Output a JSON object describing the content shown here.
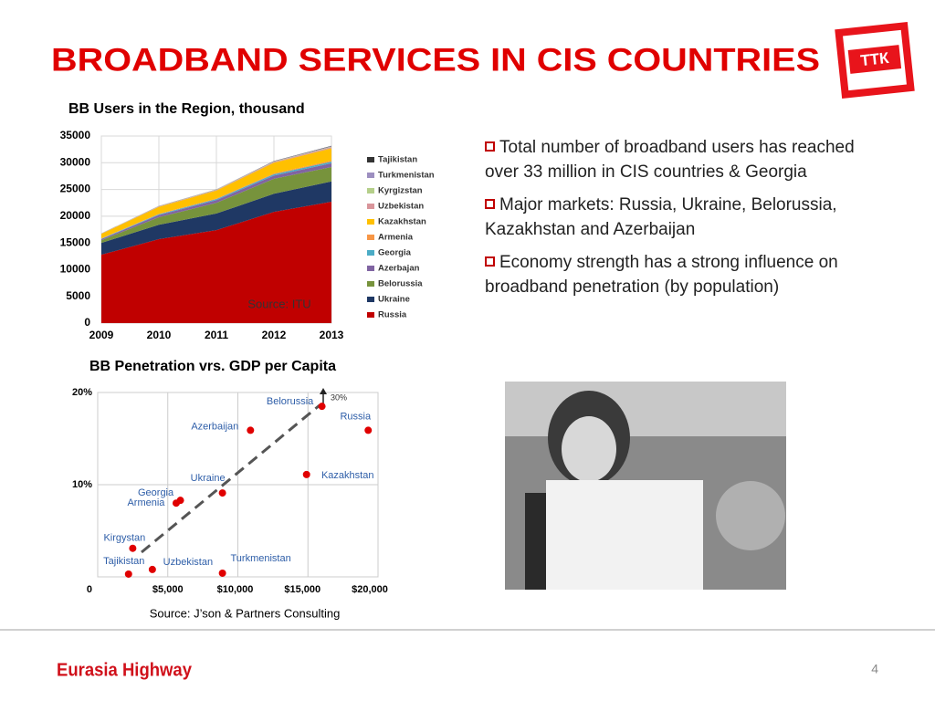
{
  "title": "BROADBAND SERVICES IN CIS COUNTRIES",
  "logo": "ТТК",
  "bullets": [
    "Total number of broadband users has reached over 33 million in CIS countries & Georgia",
    "Major markets: Russia, Ukraine, Belorussia, Kazakhstan and Azerbaijan",
    "Economy strength has a strong influence on broadband penetration (by population)"
  ],
  "footer": "Eurasia Highway",
  "page_number": "4",
  "chart_data": [
    {
      "type": "area",
      "title": "BB Users in the Region, thousand",
      "annotation": "Source: ITU",
      "x": [
        2009,
        2010,
        2011,
        2012,
        2013
      ],
      "xlim": [
        2009,
        2013
      ],
      "xticks": [
        2009,
        2010,
        2011,
        2012,
        2013
      ],
      "ylim": [
        0,
        35000
      ],
      "yticks": [
        0,
        5000,
        10000,
        15000,
        20000,
        25000,
        30000,
        35000
      ],
      "grid": true,
      "series": [
        {
          "name": "Russia",
          "color": "#c00000",
          "values": [
            12800,
            15700,
            17400,
            20800,
            22700
          ]
        },
        {
          "name": "Ukraine",
          "color": "#1f3864",
          "values": [
            2200,
            2700,
            3100,
            3400,
            3800
          ]
        },
        {
          "name": "Belorussia",
          "color": "#77933c",
          "values": [
            500,
            1400,
            2000,
            2800,
            2700
          ]
        },
        {
          "name": "Azerbajan",
          "color": "#8064a2",
          "values": [
            200,
            400,
            500,
            600,
            700
          ]
        },
        {
          "name": "Georgia",
          "color": "#4bacc6",
          "values": [
            100,
            150,
            200,
            250,
            300
          ]
        },
        {
          "name": "Armenia",
          "color": "#f79646",
          "values": [
            50,
            100,
            100,
            150,
            200
          ]
        },
        {
          "name": "Kazakhstan",
          "color": "#ffc000",
          "values": [
            850,
            1300,
            1500,
            2000,
            2300
          ]
        },
        {
          "name": "Uzbekistan",
          "color": "#d9959b",
          "values": [
            50,
            80,
            100,
            150,
            200
          ]
        },
        {
          "name": "Kyrgizstan",
          "color": "#b5cf8a",
          "values": [
            30,
            50,
            60,
            80,
            100
          ]
        },
        {
          "name": "Turkmenistan",
          "color": "#9d8fc0",
          "values": [
            10,
            20,
            30,
            50,
            100
          ]
        },
        {
          "name": "Tajikistan",
          "color": "#333333",
          "values": [
            10,
            20,
            30,
            40,
            60
          ]
        }
      ]
    },
    {
      "type": "scatter",
      "title": "BB Penetration vrs. GDP per Capita",
      "annotation": "30%",
      "source": "Source: J’son & Partners Consulting",
      "labels": [
        "Belorussia",
        "Russia",
        "Azerbaijan",
        "Kazakhstan",
        "Ukraine",
        "Georgia",
        "Armenia",
        "Kirgystan",
        "Tajikistan",
        "Uzbekistan",
        "Turkmenistan"
      ],
      "x": [
        16000,
        19300,
        10900,
        14900,
        8900,
        5900,
        5600,
        2500,
        2200,
        3900,
        8900
      ],
      "values": [
        18.5,
        15.9,
        15.9,
        11.1,
        9.1,
        8.3,
        8.0,
        3.1,
        0.3,
        0.8,
        0.4
      ],
      "color": "#e00000",
      "label_color": "#2e5ea8",
      "xlim": [
        0,
        20000
      ],
      "xticks": [
        {
          "value": 5000,
          "label": "$5,000"
        },
        {
          "value": 10000,
          "label": "$10,000"
        },
        {
          "value": 15000,
          "label": "$15,000"
        },
        {
          "value": 20000,
          "label": "$20,000"
        }
      ],
      "ylim": [
        0,
        20
      ],
      "yticks": [
        0,
        {
          "value": 10,
          "label": "10%"
        },
        {
          "value": 20,
          "label": "20%"
        }
      ],
      "grid": true
    }
  ]
}
